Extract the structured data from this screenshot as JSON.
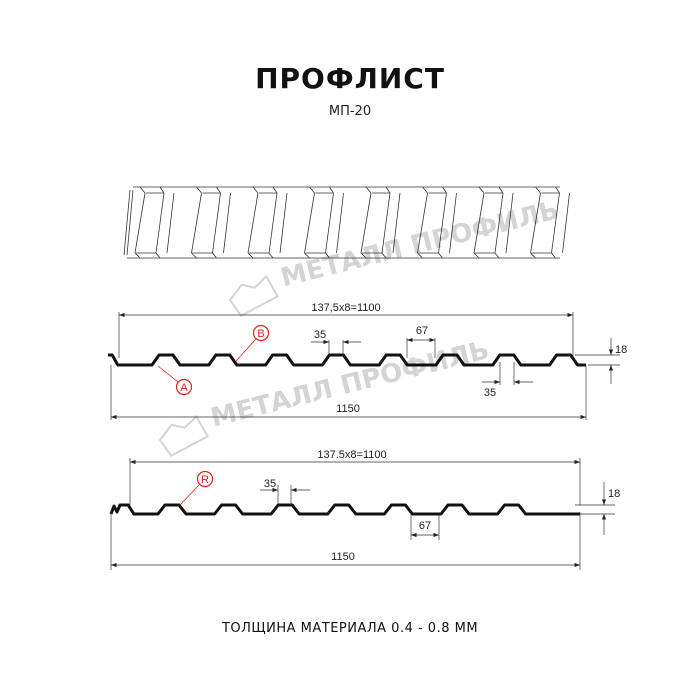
{
  "title": "ПРОФЛИСТ",
  "subtitle": "МП-20",
  "footer": "ТОЛЩИНА МАТЕРИАЛА 0.4 - 0.8 ММ",
  "watermark": "МЕТАЛЛ ПРОФИЛЬ",
  "colors": {
    "profile": "#111111",
    "callout": "#e02020",
    "watermark": "#d4d4d4"
  },
  "profile_a": {
    "span_label": "137,5x8=1100",
    "total_label": "1150",
    "crest_label": "35",
    "trough_label": "35",
    "pitch_label": "67",
    "height_label": "18",
    "callouts": [
      "A",
      "B"
    ]
  },
  "profile_r": {
    "span_label": "137.5x8=1100",
    "total_label": "1150",
    "crest_label": "35",
    "pitch_label": "67",
    "height_label": "18",
    "callouts": [
      "R"
    ]
  }
}
